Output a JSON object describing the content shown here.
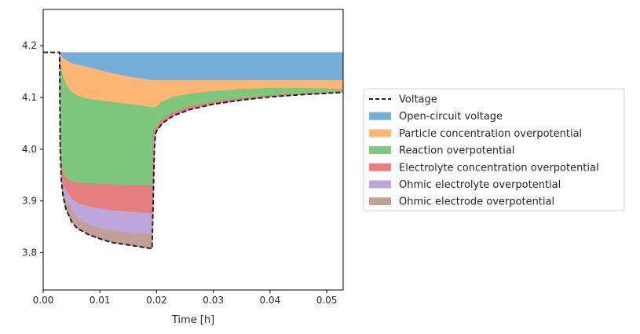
{
  "chart_data": {
    "type": "area",
    "xlabel": "Time [h]",
    "ylabel": "",
    "xlim": [
      0.0,
      0.0529
    ],
    "ylim": [
      3.728,
      4.27
    ],
    "xticks": [
      0.0,
      0.01,
      0.02,
      0.03,
      0.04,
      0.05
    ],
    "xtick_labels": [
      "0.00",
      "0.01",
      "0.02",
      "0.03",
      "0.04",
      "0.05"
    ],
    "yticks": [
      3.8,
      3.9,
      4.0,
      4.1,
      4.2
    ],
    "ytick_labels": [
      "3.8",
      "3.9",
      "4.0",
      "4.1",
      "4.2"
    ],
    "grid": false,
    "legend_position": "right",
    "voltage": {
      "name": "Voltage",
      "color": "#222222",
      "x": [
        0.0,
        0.0029,
        0.003,
        0.0032,
        0.0035,
        0.004,
        0.005,
        0.006,
        0.008,
        0.01,
        0.012,
        0.015,
        0.018,
        0.0192,
        0.0194,
        0.0196,
        0.0198,
        0.02,
        0.021,
        0.023,
        0.026,
        0.03,
        0.035,
        0.04,
        0.045,
        0.05,
        0.0529
      ],
      "values": [
        4.187,
        4.187,
        4.0,
        3.94,
        3.91,
        3.885,
        3.86,
        3.847,
        3.835,
        3.827,
        3.82,
        3.815,
        3.81,
        3.808,
        3.9,
        4.0,
        4.03,
        4.035,
        4.05,
        4.065,
        4.077,
        4.087,
        4.095,
        4.101,
        4.105,
        4.108,
        4.11
      ]
    },
    "overpotentials": {
      "x": [
        0.0029,
        0.003,
        0.0032,
        0.0035,
        0.004,
        0.005,
        0.006,
        0.008,
        0.01,
        0.012,
        0.015,
        0.018,
        0.0192,
        0.0193,
        0.0194,
        0.0196,
        0.0198,
        0.02,
        0.021,
        0.023,
        0.026,
        0.03,
        0.035,
        0.04,
        0.045,
        0.05,
        0.0529
      ],
      "series": [
        {
          "name": "Open-circuit voltage",
          "color": "#77aed7",
          "values": [
            4.187,
            4.187,
            4.187,
            4.187,
            4.187,
            4.187,
            4.187,
            4.187,
            4.187,
            4.187,
            4.187,
            4.187,
            4.187,
            4.187,
            4.187,
            4.187,
            4.187,
            4.187,
            4.187,
            4.187,
            4.187,
            4.187,
            4.187,
            4.187,
            4.187,
            4.187,
            4.187
          ]
        },
        {
          "name": "Particle concentration overpotential",
          "color": "#ffb574",
          "values": [
            4.187,
            4.185,
            4.18,
            4.176,
            4.172,
            4.166,
            4.163,
            4.158,
            4.152,
            4.147,
            4.14,
            4.135,
            4.133,
            4.133,
            4.133,
            4.133,
            4.133,
            4.133,
            4.133,
            4.133,
            4.133,
            4.133,
            4.133,
            4.133,
            4.133,
            4.133,
            4.133
          ]
        },
        {
          "name": "Reaction overpotential",
          "color": "#7ec87e",
          "values": [
            4.187,
            4.175,
            4.155,
            4.14,
            4.125,
            4.11,
            4.103,
            4.097,
            4.094,
            4.091,
            4.087,
            4.083,
            4.081,
            4.081,
            4.081,
            4.081,
            4.081,
            4.083,
            4.092,
            4.101,
            4.107,
            4.112,
            4.116,
            4.118,
            4.118,
            4.117,
            4.116
          ]
        },
        {
          "name": "Electrolyte concentration overpotential",
          "color": "#e57e7e",
          "values": [
            4.187,
            4.02,
            3.975,
            3.955,
            3.945,
            3.938,
            3.935,
            3.934,
            3.933,
            3.932,
            3.931,
            3.93,
            3.93,
            3.98,
            4.03,
            4.035,
            4.04,
            4.043,
            4.058,
            4.072,
            4.083,
            4.092,
            4.099,
            4.104,
            4.107,
            4.11,
            4.112
          ]
        },
        {
          "name": "Ohmic electrolyte overpotential",
          "color": "#bda6dc",
          "values": [
            4.187,
            4.0,
            3.955,
            3.93,
            3.92,
            3.905,
            3.896,
            3.889,
            3.885,
            3.882,
            3.879,
            3.877,
            3.876,
            3.93,
            4.0,
            4.03,
            4.031,
            4.036,
            4.051,
            4.066,
            4.078,
            4.088,
            4.096,
            4.102,
            4.106,
            4.109,
            4.111
          ]
        },
        {
          "name": "Ohmic electrode overpotential",
          "color": "#c2a097",
          "values": [
            4.187,
            4.0,
            3.945,
            3.918,
            3.902,
            3.882,
            3.867,
            3.855,
            3.848,
            3.843,
            3.839,
            3.836,
            3.835,
            3.9,
            3.99,
            4.02,
            4.03,
            4.035,
            4.05,
            4.065,
            4.077,
            4.087,
            4.095,
            4.101,
            4.105,
            4.108,
            4.11
          ]
        }
      ]
    },
    "legend": [
      "Voltage",
      "Open-circuit voltage",
      "Particle concentration overpotential",
      "Reaction overpotential",
      "Electrolyte concentration overpotential",
      "Ohmic electrolyte overpotential",
      "Ohmic electrode overpotential"
    ]
  }
}
